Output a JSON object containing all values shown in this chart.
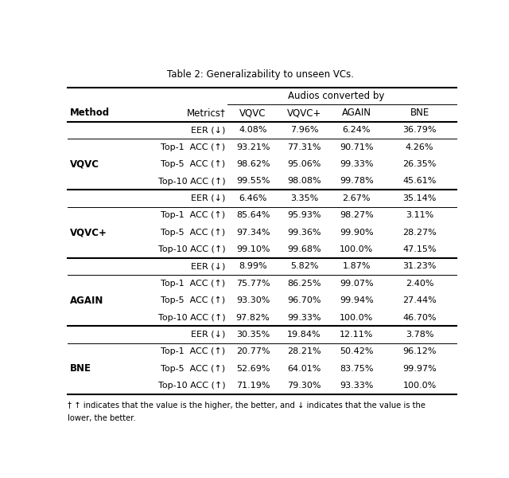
{
  "title": "Table 2: Generalizability to unseen VCs.",
  "footnote_line1": "† ↑ indicates that the value is the higher, the better, and ↓ indicates that the value is the",
  "footnote_line2": "lower, the better.",
  "rows": [
    {
      "metric": "EER (↓)",
      "values": [
        "4.08%",
        "7.96%",
        "6.24%",
        "36.79%"
      ]
    },
    {
      "metric": "Top-1  ACC (↑)",
      "values": [
        "93.21%",
        "77.31%",
        "90.71%",
        "4.26%"
      ]
    },
    {
      "metric": "Top-5  ACC (↑)",
      "values": [
        "98.62%",
        "95.06%",
        "99.33%",
        "26.35%"
      ]
    },
    {
      "metric": "Top-10 ACC (↑)",
      "values": [
        "99.55%",
        "98.08%",
        "99.78%",
        "45.61%"
      ]
    },
    {
      "metric": "EER (↓)",
      "values": [
        "6.46%",
        "3.35%",
        "2.67%",
        "35.14%"
      ]
    },
    {
      "metric": "Top-1  ACC (↑)",
      "values": [
        "85.64%",
        "95.93%",
        "98.27%",
        "3.11%"
      ]
    },
    {
      "metric": "Top-5  ACC (↑)",
      "values": [
        "97.34%",
        "99.36%",
        "99.90%",
        "28.27%"
      ]
    },
    {
      "metric": "Top-10 ACC (↑)",
      "values": [
        "99.10%",
        "99.68%",
        "100.0%",
        "47.15%"
      ]
    },
    {
      "metric": "EER (↓)",
      "values": [
        "8.99%",
        "5.82%",
        "1.87%",
        "31.23%"
      ]
    },
    {
      "metric": "Top-1  ACC (↑)",
      "values": [
        "75.77%",
        "86.25%",
        "99.07%",
        "2.40%"
      ]
    },
    {
      "metric": "Top-5  ACC (↑)",
      "values": [
        "93.30%",
        "96.70%",
        "99.94%",
        "27.44%"
      ]
    },
    {
      "metric": "Top-10 ACC (↑)",
      "values": [
        "97.82%",
        "99.33%",
        "100.0%",
        "46.70%"
      ]
    },
    {
      "metric": "EER (↓)",
      "values": [
        "30.35%",
        "19.84%",
        "12.11%",
        "3.78%"
      ]
    },
    {
      "metric": "Top-1  ACC (↑)",
      "values": [
        "20.77%",
        "28.21%",
        "50.42%",
        "96.12%"
      ]
    },
    {
      "metric": "Top-5  ACC (↑)",
      "values": [
        "52.69%",
        "64.01%",
        "83.75%",
        "99.97%"
      ]
    },
    {
      "metric": "Top-10 ACC (↑)",
      "values": [
        "71.19%",
        "79.30%",
        "93.33%",
        "100.0%"
      ]
    }
  ],
  "group_labels": [
    "VQVC",
    "VQVC+",
    "AGAIN",
    "BNE"
  ],
  "col_headers": [
    "VQVC",
    "VQVC+",
    "AGAIN",
    "BNE"
  ],
  "bg_color": "#ffffff",
  "thick_lw": 1.5,
  "thin_lw": 0.7
}
